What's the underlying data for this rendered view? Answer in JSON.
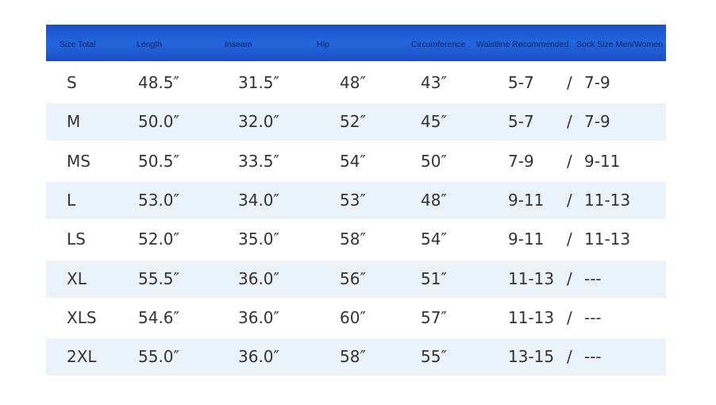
{
  "table": {
    "header": [
      "Size Total",
      "Length",
      "Inseam",
      "Hip",
      "Circumference",
      "Waistline Recommended",
      "Sock Size Men/Women"
    ],
    "separator": "/",
    "rows": [
      [
        "S",
        "48.5″",
        "31.5″",
        "48″",
        "43″",
        "5-7",
        "7-9"
      ],
      [
        "M",
        "50.0″",
        "32.0″",
        "52″",
        "45″",
        "5-7",
        "7-9"
      ],
      [
        "MS",
        "50.5″",
        "33.5″",
        "54″",
        "50″",
        "7-9",
        "9-11"
      ],
      [
        "L",
        "53.0″",
        "34.0″",
        "53″",
        "48″",
        "9-11",
        "11-13"
      ],
      [
        "LS",
        "52.0″",
        "35.0″",
        "58″",
        "54″",
        "9-11",
        "11-13"
      ],
      [
        "XL",
        "55.5″",
        "36.0″",
        "56″",
        "51″",
        "11-13",
        "---"
      ],
      [
        "XLS",
        "54.6″",
        "36.0″",
        "60″",
        "57″",
        "11-13",
        "---"
      ],
      [
        "2XL",
        "55.0″",
        "36.0″",
        "58″",
        "55″",
        "13-15",
        "---"
      ]
    ]
  }
}
